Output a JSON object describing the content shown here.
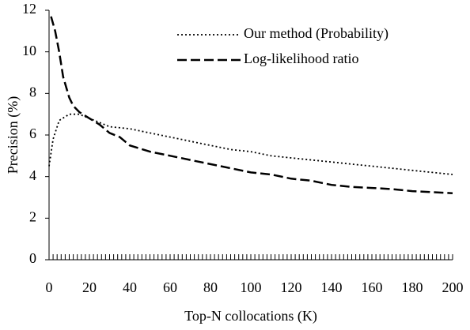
{
  "chart_data": {
    "type": "line",
    "xlabel": "Top-N collocations (K)",
    "ylabel": "Precision (%)",
    "xlim": [
      0,
      200
    ],
    "xticks": [
      0,
      20,
      40,
      60,
      80,
      100,
      120,
      140,
      160,
      180,
      200
    ],
    "xminorticks": [
      2,
      4,
      6,
      8,
      10,
      12,
      14,
      16,
      18,
      20,
      22,
      24,
      26,
      28,
      30,
      32,
      34,
      36,
      38,
      40,
      42,
      44,
      46,
      48,
      50,
      52,
      54,
      56,
      58,
      60,
      62,
      64,
      66,
      68,
      70,
      72,
      74,
      76,
      78,
      80,
      82,
      84,
      86,
      88,
      90,
      92,
      94,
      96,
      98,
      100,
      102,
      104,
      106,
      108,
      110,
      112,
      114,
      116,
      118,
      120,
      122,
      124,
      126,
      128,
      130,
      132,
      134,
      136,
      138,
      140,
      142,
      144,
      146,
      148,
      150,
      152,
      154,
      156,
      158,
      160,
      162,
      164,
      166,
      168,
      170,
      172,
      174,
      176,
      178,
      180,
      182,
      184,
      186,
      188,
      190,
      192,
      194,
      196,
      198
    ],
    "ylim": [
      0,
      12
    ],
    "yticks": [
      0,
      2,
      4,
      6,
      8,
      10,
      12
    ],
    "legend": "upper right",
    "series": [
      {
        "name": "Our method (Probability)",
        "color": "#000000",
        "dash": "dotted",
        "x": [
          0,
          2,
          5,
          10,
          15,
          20,
          25,
          30,
          40,
          50,
          60,
          70,
          80,
          90,
          100,
          110,
          120,
          130,
          140,
          150,
          160,
          170,
          180,
          190,
          200
        ],
        "values": [
          4.5,
          5.8,
          6.7,
          7.0,
          7.0,
          6.8,
          6.6,
          6.4,
          6.3,
          6.1,
          5.9,
          5.7,
          5.5,
          5.3,
          5.2,
          5.0,
          4.9,
          4.8,
          4.7,
          4.6,
          4.5,
          4.4,
          4.3,
          4.2,
          4.1
        ]
      },
      {
        "name": "Log-likelihood ratio",
        "color": "#000000",
        "dash": "dashed",
        "x": [
          1,
          3,
          5,
          7,
          10,
          12,
          15,
          20,
          25,
          30,
          35,
          40,
          50,
          60,
          70,
          80,
          90,
          100,
          110,
          120,
          130,
          140,
          150,
          160,
          170,
          180,
          190,
          200
        ],
        "values": [
          11.7,
          11.0,
          10.0,
          8.8,
          7.8,
          7.4,
          7.1,
          6.8,
          6.5,
          6.1,
          5.9,
          5.5,
          5.2,
          5.0,
          4.8,
          4.6,
          4.4,
          4.2,
          4.1,
          3.9,
          3.8,
          3.6,
          3.5,
          3.45,
          3.4,
          3.3,
          3.25,
          3.2
        ]
      }
    ]
  }
}
